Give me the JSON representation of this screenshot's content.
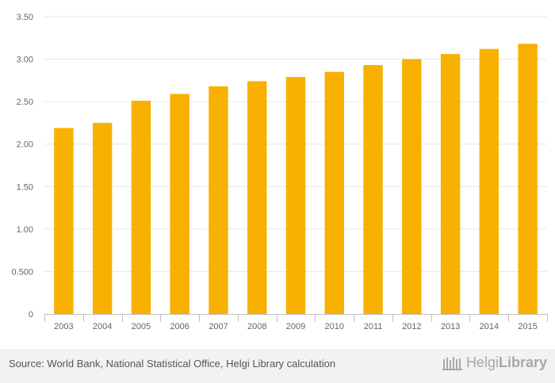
{
  "chart_data": {
    "type": "bar",
    "categories": [
      "2003",
      "2004",
      "2005",
      "2006",
      "2007",
      "2008",
      "2009",
      "2010",
      "2011",
      "2012",
      "2013",
      "2014",
      "2015"
    ],
    "values": [
      2.19,
      2.25,
      2.51,
      2.59,
      2.68,
      2.74,
      2.79,
      2.85,
      2.93,
      3.0,
      3.06,
      3.12,
      3.18
    ],
    "ylim": [
      0,
      3.5
    ],
    "yticks": [
      {
        "value": 0,
        "label": "0"
      },
      {
        "value": 0.5,
        "label": "0.500"
      },
      {
        "value": 1.0,
        "label": "1.00"
      },
      {
        "value": 1.5,
        "label": "1.50"
      },
      {
        "value": 2.0,
        "label": "2.00"
      },
      {
        "value": 2.5,
        "label": "2.50"
      },
      {
        "value": 3.0,
        "label": "3.00"
      },
      {
        "value": 3.5,
        "label": "3.50"
      }
    ],
    "title": "",
    "xlabel": "",
    "ylabel": "",
    "grid": true,
    "bar_color": "#f8b100"
  },
  "footer": {
    "source": "Source: World Bank, National Statistical Office, Helgi Library calculation",
    "brand_light": "Helgi",
    "brand_bold": "Library"
  }
}
